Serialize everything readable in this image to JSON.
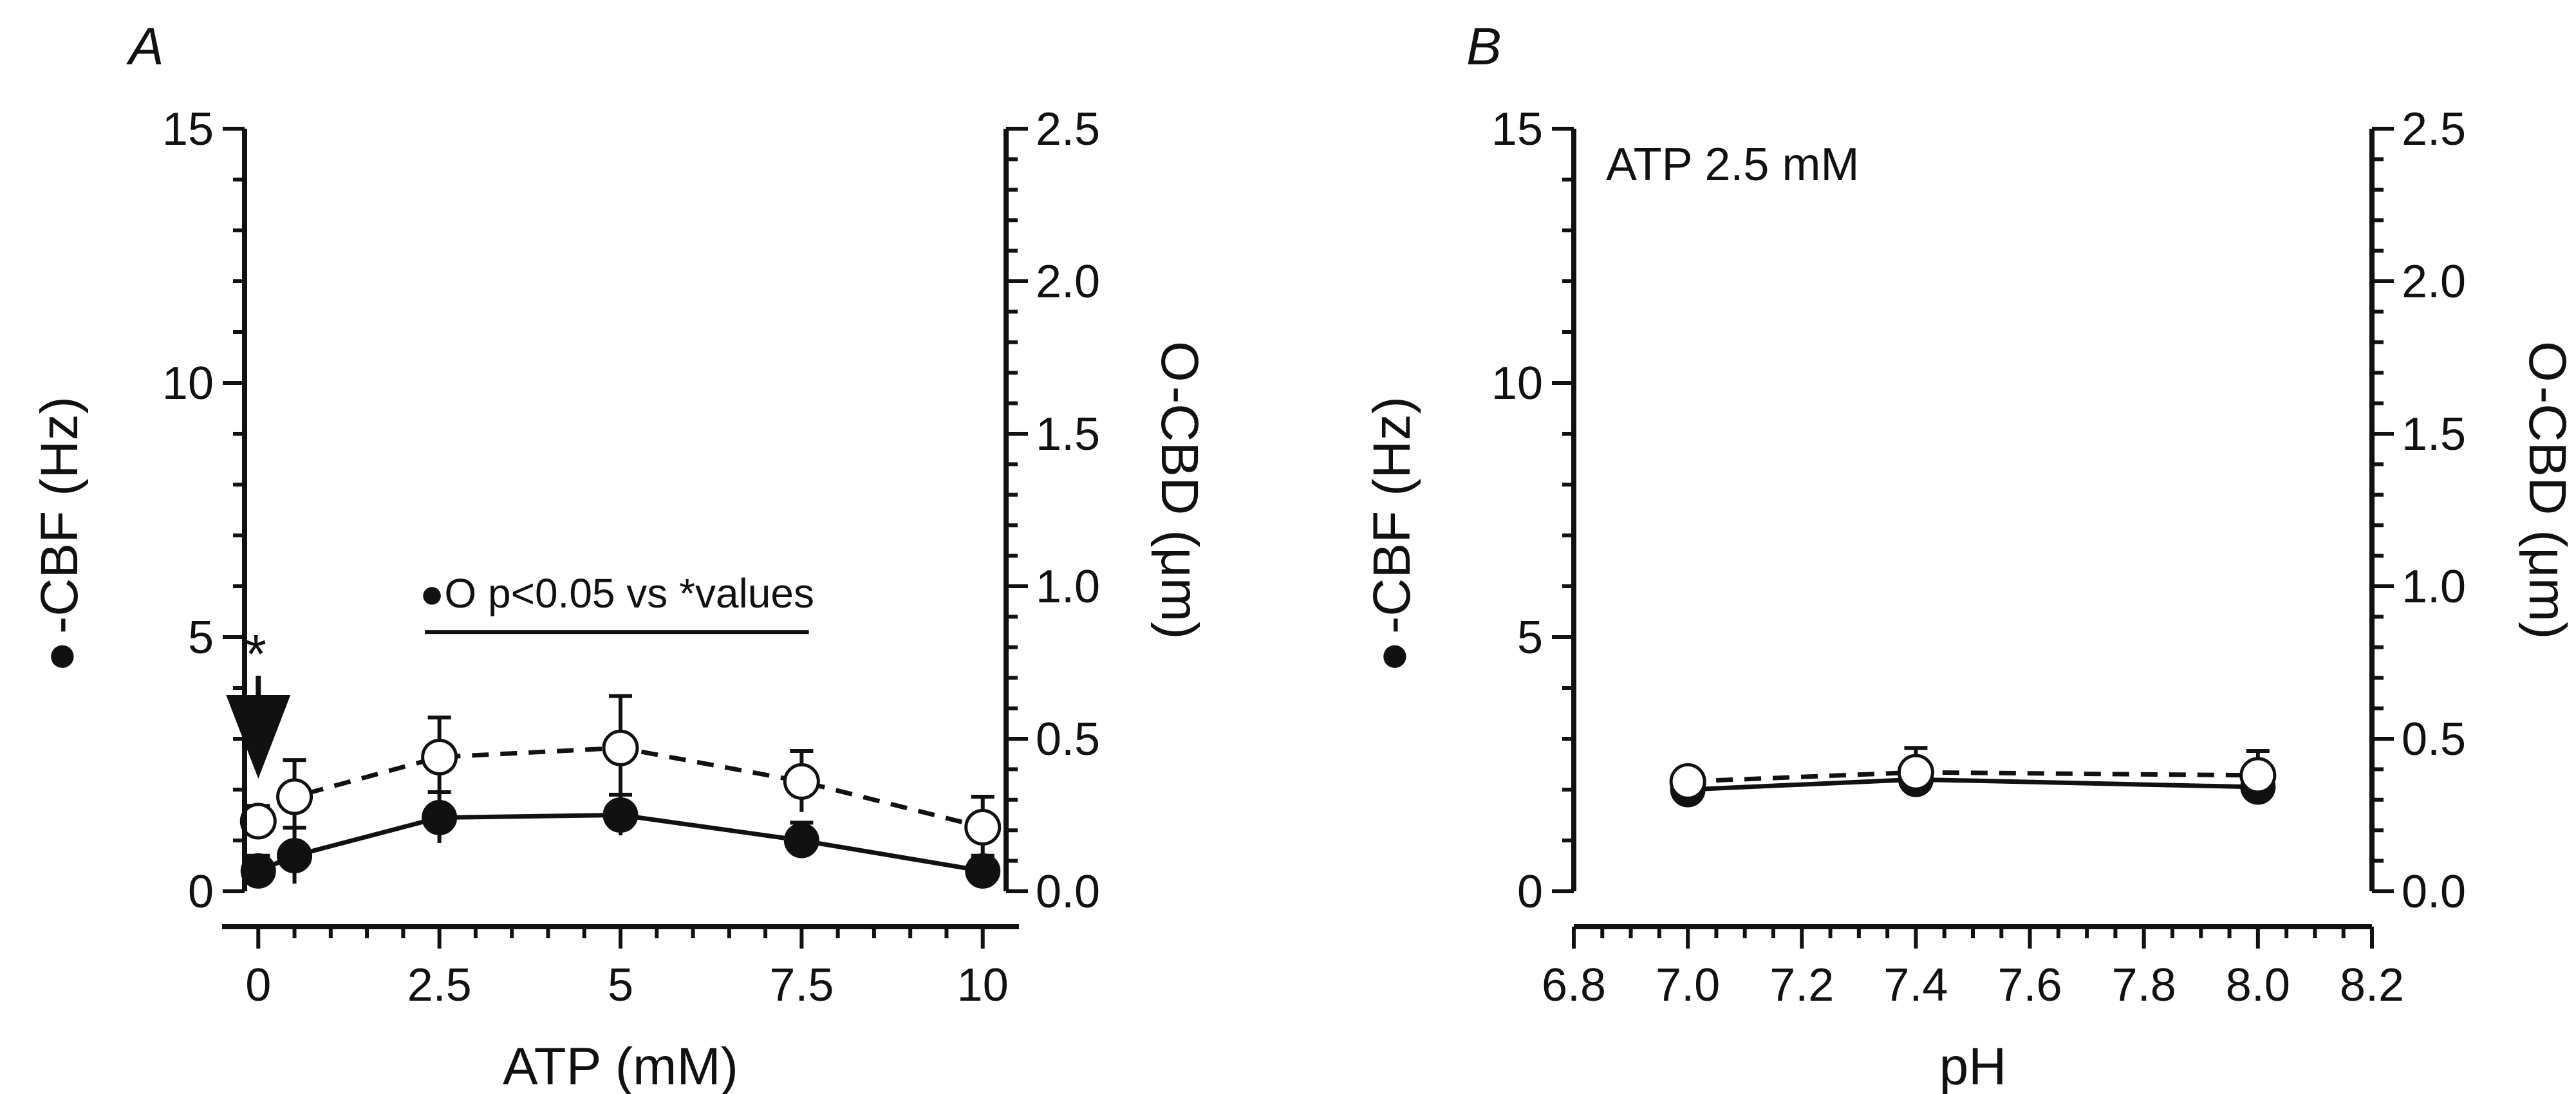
{
  "chart_data": [
    {
      "type": "line",
      "panel_label": "A",
      "xlabel": "ATP (mM)",
      "ylabel_marker": "●",
      "ylabel": "-CBF (Hz)",
      "y2label_marker": "O",
      "y2label": "-CBD (μm)",
      "xlim": [
        -0.5,
        10.5
      ],
      "ylim": [
        0,
        15
      ],
      "y2lim": [
        0,
        2.5
      ],
      "x_ticks": [
        0,
        2.5,
        5,
        7.5,
        10
      ],
      "x_tick_labels": [
        "0",
        "2.5",
        "5",
        "7.5",
        "10"
      ],
      "y_ticks": [
        0,
        5,
        10,
        15
      ],
      "y_tick_labels": [
        "0",
        "5",
        "10",
        "15"
      ],
      "y2_ticks": [
        0,
        0.5,
        1.0,
        1.5,
        2.0,
        2.5
      ],
      "y2_tick_labels": [
        "0.0",
        "0.5",
        "1.0",
        "1.5",
        "2.0",
        "2.5"
      ],
      "series": [
        {
          "marker": "filled-circle",
          "line": "solid",
          "axis": "left",
          "x": [
            0,
            0.5,
            2.5,
            5,
            7.5,
            10
          ],
          "y": [
            0.4,
            0.7,
            1.45,
            1.5,
            1.0,
            0.4
          ],
          "err": [
            0.3,
            0.55,
            0.5,
            0.4,
            0.35,
            0.3
          ]
        },
        {
          "marker": "open-circle",
          "line": "dashed",
          "axis": "right",
          "x": [
            0,
            0.5,
            2.5,
            5,
            7.5,
            10
          ],
          "y": [
            0.23,
            0.31,
            0.44,
            0.47,
            0.36,
            0.21
          ],
          "err": [
            0.05,
            0.12,
            0.13,
            0.17,
            0.1,
            0.1
          ]
        }
      ],
      "annotations": {
        "star": "*",
        "bar_label": "●O p<0.05 vs *values",
        "bar_x_range": [
          2.3,
          7.6
        ],
        "bar_y": 5.1,
        "arrow_x": 0
      }
    },
    {
      "type": "line",
      "panel_label": "B",
      "xlabel": "pH",
      "ylabel_marker": "●",
      "ylabel": "-CBF (Hz)",
      "y2label_marker": "O",
      "y2label": "-CBD (μm)",
      "inset_text": "ATP 2.5 mM",
      "xlim": [
        6.8,
        8.2
      ],
      "ylim": [
        0,
        15
      ],
      "y2lim": [
        0,
        2.5
      ],
      "x_ticks": [
        6.8,
        7.0,
        7.2,
        7.4,
        7.6,
        7.8,
        8.0,
        8.2
      ],
      "x_tick_labels": [
        "6.8",
        "7.0",
        "7.2",
        "7.4",
        "7.6",
        "7.8",
        "8.0",
        "8.2"
      ],
      "y_ticks": [
        0,
        5,
        10,
        15
      ],
      "y_tick_labels": [
        "0",
        "5",
        "10",
        "15"
      ],
      "y2_ticks": [
        0,
        0.5,
        1.0,
        1.5,
        2.0,
        2.5
      ],
      "y2_tick_labels": [
        "0.0",
        "0.5",
        "1.0",
        "1.5",
        "2.0",
        "2.5"
      ],
      "series": [
        {
          "marker": "filled-circle",
          "line": "solid",
          "axis": "left",
          "x": [
            7.0,
            7.4,
            8.0
          ],
          "y": [
            2.0,
            2.2,
            2.05
          ],
          "err": [
            0.15,
            0.2,
            0.15
          ]
        },
        {
          "marker": "open-circle",
          "line": "dashed",
          "axis": "right",
          "x": [
            7.0,
            7.4,
            8.0
          ],
          "y": [
            0.36,
            0.39,
            0.38
          ],
          "err": [
            0.03,
            0.08,
            0.08
          ]
        }
      ]
    }
  ]
}
